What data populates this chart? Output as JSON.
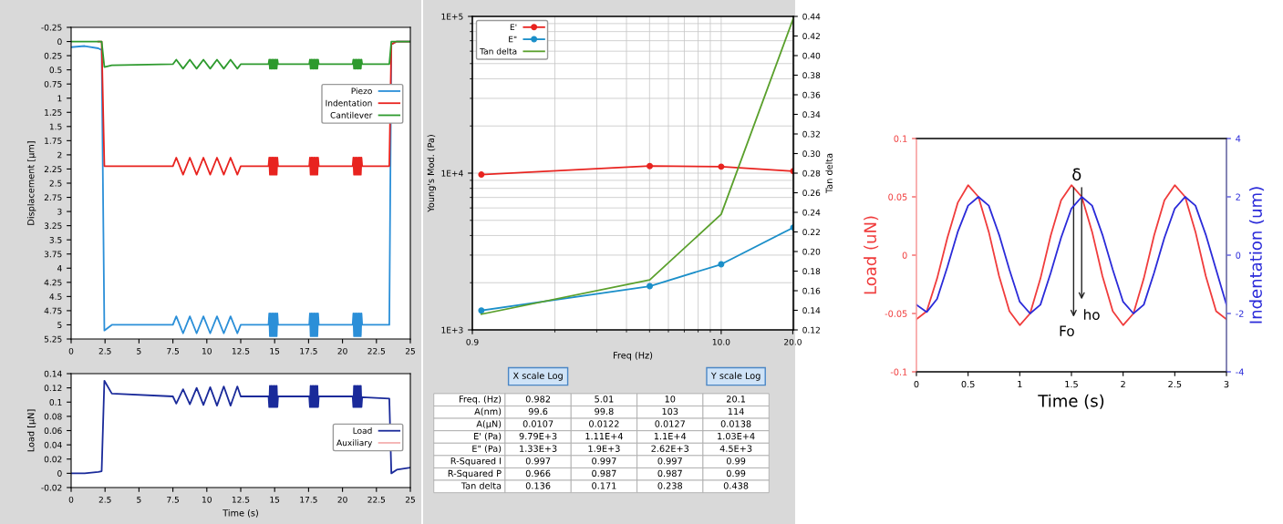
{
  "chart_data": [
    {
      "type": "line",
      "ylabel": "Displacement [μm]",
      "xlim": [
        0,
        25
      ],
      "ylim": [
        5.25,
        -0.25
      ],
      "xticks": [
        0,
        2.5,
        5,
        7.5,
        10,
        12.5,
        15,
        17.5,
        20,
        22.5,
        25
      ],
      "yticks": [
        -0.25,
        0,
        0.25,
        0.5,
        0.75,
        1,
        1.25,
        1.5,
        1.75,
        2,
        2.25,
        2.5,
        2.75,
        3,
        3.25,
        3.5,
        3.75,
        4,
        4.25,
        4.5,
        4.75,
        5,
        5.25
      ],
      "legend": "top right",
      "grid": false,
      "x": [
        0,
        1,
        2,
        2.25,
        2.45,
        3,
        7.5,
        7.75,
        8.25,
        8.75,
        9.25,
        9.75,
        10.25,
        10.75,
        11.25,
        11.75,
        12.25,
        12.5,
        14.55,
        14.6,
        14.65,
        14.7,
        14.75,
        14.8,
        14.85,
        14.9,
        14.95,
        15.0,
        15.05,
        15.1,
        15.15,
        15.2,
        15.25,
        17.55,
        17.6,
        17.65,
        17.7,
        17.75,
        17.8,
        17.85,
        17.9,
        17.95,
        18.0,
        18.05,
        18.1,
        18.15,
        18.2,
        18.25,
        20.75,
        20.8,
        20.85,
        20.9,
        20.95,
        21.0,
        21.05,
        21.1,
        21.15,
        21.2,
        21.25,
        21.3,
        21.35,
        21.4,
        21.45,
        23.45,
        23.6,
        24,
        25
      ],
      "series": [
        {
          "name": "Piezo",
          "color": "#2b8fd8",
          "values": [
            0.1,
            0.08,
            0.12,
            0.15,
            5.1,
            5.0,
            5.0,
            4.85,
            5.15,
            4.85,
            5.15,
            4.85,
            5.15,
            4.85,
            5.15,
            4.85,
            5.15,
            5.0,
            5.0,
            4.8,
            5.2,
            4.8,
            5.2,
            4.8,
            5.2,
            4.8,
            5.2,
            4.8,
            5.2,
            4.8,
            5.2,
            4.8,
            5.0,
            5.0,
            4.8,
            5.2,
            4.8,
            5.2,
            4.8,
            5.2,
            4.8,
            5.2,
            4.8,
            5.2,
            4.8,
            5.2,
            4.8,
            5.0,
            5.0,
            4.8,
            5.2,
            4.8,
            5.2,
            4.8,
            5.2,
            4.8,
            5.2,
            4.8,
            5.2,
            4.8,
            5.2,
            4.8,
            5.0,
            5.0,
            0.05,
            0.0,
            0.0
          ]
        },
        {
          "name": "Indentation",
          "color": "#e8231f",
          "values": [
            null,
            null,
            0,
            0,
            2.2,
            2.2,
            2.2,
            2.05,
            2.35,
            2.05,
            2.35,
            2.05,
            2.35,
            2.05,
            2.35,
            2.05,
            2.35,
            2.2,
            2.2,
            2.05,
            2.35,
            2.05,
            2.35,
            2.05,
            2.35,
            2.05,
            2.35,
            2.05,
            2.35,
            2.05,
            2.35,
            2.05,
            2.2,
            2.2,
            2.05,
            2.35,
            2.05,
            2.35,
            2.05,
            2.35,
            2.05,
            2.35,
            2.05,
            2.35,
            2.05,
            2.35,
            2.05,
            2.2,
            2.2,
            2.05,
            2.35,
            2.05,
            2.35,
            2.05,
            2.35,
            2.05,
            2.35,
            2.05,
            2.35,
            2.05,
            2.35,
            2.05,
            2.2,
            2.2,
            0.05,
            0.0,
            0.0
          ]
        },
        {
          "name": "Cantilever",
          "color": "#2e9a2e",
          "values": [
            0,
            0,
            0,
            0,
            0.45,
            0.42,
            0.4,
            0.32,
            0.48,
            0.32,
            0.48,
            0.32,
            0.48,
            0.32,
            0.48,
            0.32,
            0.48,
            0.4,
            0.4,
            0.32,
            0.48,
            0.32,
            0.48,
            0.32,
            0.48,
            0.32,
            0.48,
            0.32,
            0.48,
            0.32,
            0.48,
            0.32,
            0.4,
            0.4,
            0.32,
            0.48,
            0.32,
            0.48,
            0.32,
            0.48,
            0.32,
            0.48,
            0.32,
            0.48,
            0.32,
            0.48,
            0.32,
            0.4,
            0.4,
            0.32,
            0.48,
            0.32,
            0.48,
            0.32,
            0.48,
            0.32,
            0.48,
            0.32,
            0.48,
            0.32,
            0.48,
            0.32,
            0.4,
            0.4,
            0.0,
            0.0,
            0.0
          ]
        }
      ]
    },
    {
      "type": "line",
      "xlabel": "Time (s)",
      "ylabel": "Load [μN]",
      "xlim": [
        0,
        25
      ],
      "ylim": [
        -0.02,
        0.14
      ],
      "xticks": [
        0,
        2.5,
        5,
        7.5,
        10,
        12.5,
        15,
        17.5,
        20,
        22.5,
        25
      ],
      "yticks": [
        -0.02,
        0,
        0.02,
        0.04,
        0.06,
        0.08,
        0.1,
        0.12,
        0.14
      ],
      "legend": "right",
      "grid": false,
      "x": [
        0,
        1,
        2,
        2.25,
        2.45,
        3,
        7.5,
        7.75,
        8.25,
        8.75,
        9.25,
        9.75,
        10.25,
        10.75,
        11.25,
        11.75,
        12.25,
        12.5,
        14.55,
        14.6,
        14.65,
        14.7,
        14.75,
        14.8,
        14.85,
        14.9,
        14.95,
        15.0,
        15.05,
        15.1,
        15.15,
        15.2,
        15.25,
        17.55,
        17.6,
        17.65,
        17.7,
        17.75,
        17.8,
        17.85,
        17.9,
        17.95,
        18.0,
        18.05,
        18.1,
        18.15,
        18.2,
        18.25,
        20.75,
        20.8,
        20.85,
        20.9,
        20.95,
        21.0,
        21.05,
        21.1,
        21.15,
        21.2,
        21.25,
        21.3,
        21.35,
        21.4,
        21.45,
        23.45,
        23.6,
        24,
        25
      ],
      "series": [
        {
          "name": "Load",
          "color": "#1a2a9a",
          "values": [
            0.0,
            0.0,
            0.002,
            0.003,
            0.13,
            0.112,
            0.108,
            0.098,
            0.118,
            0.097,
            0.12,
            0.096,
            0.121,
            0.095,
            0.122,
            0.095,
            0.122,
            0.108,
            0.108,
            0.093,
            0.123,
            0.093,
            0.123,
            0.093,
            0.123,
            0.093,
            0.123,
            0.093,
            0.123,
            0.093,
            0.123,
            0.093,
            0.108,
            0.108,
            0.093,
            0.123,
            0.093,
            0.123,
            0.093,
            0.123,
            0.093,
            0.123,
            0.093,
            0.123,
            0.093,
            0.123,
            0.093,
            0.108,
            0.108,
            0.093,
            0.123,
            0.093,
            0.123,
            0.093,
            0.123,
            0.093,
            0.123,
            0.093,
            0.123,
            0.093,
            0.123,
            0.093,
            0.107,
            0.105,
            0.0,
            0.005,
            0.008
          ]
        },
        {
          "name": "Auxiliary",
          "color": "#f4b0b0",
          "values": [
            null,
            null,
            null,
            null,
            null,
            null,
            null,
            null,
            null,
            null,
            null,
            null,
            null,
            null,
            null,
            null,
            null,
            null,
            null,
            null,
            null,
            null,
            null,
            null,
            null,
            null,
            null,
            null,
            null,
            null,
            null,
            null,
            null,
            null,
            null,
            null,
            null,
            null,
            null,
            null,
            null,
            null,
            null,
            null,
            null,
            null,
            null,
            null,
            null,
            null,
            null,
            null,
            null,
            null,
            null,
            null,
            null,
            null,
            null,
            null,
            null,
            null,
            null,
            null,
            null,
            null,
            null
          ]
        }
      ]
    },
    {
      "type": "line",
      "xlabel": "Freq (Hz)",
      "ylabel": "Young's Mod. (Pa)",
      "y2label": "Tan delta",
      "log": "xy",
      "xlim": [
        0.9,
        20.1
      ],
      "ylim": [
        1000,
        100000
      ],
      "y2lim": [
        0.12,
        0.44
      ],
      "xticks": [
        {
          "value": 0.9,
          "label": "0.9"
        },
        {
          "value": 10,
          "label": "10.0"
        },
        {
          "value": 20,
          "label": "20.0"
        }
      ],
      "yticks": [
        {
          "value": 1000,
          "label": "1E+3"
        },
        {
          "value": 10000,
          "label": "1E+4"
        },
        {
          "value": 100000,
          "label": "1E+5"
        }
      ],
      "y2ticks": [
        0.12,
        0.14,
        0.16,
        0.18,
        {
          "value": 0.2,
          "label": "0.20"
        },
        0.22,
        0.24,
        0.26,
        0.28,
        {
          "value": 0.3,
          "label": "0.30"
        },
        0.32,
        0.34,
        0.36,
        0.38,
        {
          "value": 0.4,
          "label": "0.40"
        },
        0.42,
        0.44
      ],
      "grid": true,
      "legend": "top left",
      "x": [
        0.982,
        5.01,
        10,
        20.1
      ],
      "series": [
        {
          "name": "E'",
          "color": "#e8231f",
          "marker": "circle",
          "values": [
            9790,
            11100,
            11000,
            10300
          ]
        },
        {
          "name": "E\"",
          "color": "#1b8fc9",
          "marker": "circle",
          "values": [
            1330,
            1900,
            2620,
            4500
          ]
        },
        {
          "name": "Tan delta",
          "color": "#5aa02c",
          "axis": "y2",
          "values": [
            0.136,
            0.171,
            0.238,
            0.438
          ]
        }
      ]
    },
    {
      "type": "other",
      "annotations": [
        "X scale Log",
        "Y scale Log"
      ],
      "y_categories": [
        "Freq. (Hz)",
        "A(nm)",
        "A(μN)",
        "E' (Pa)",
        "E\" (Pa)",
        "R-Squared I",
        "R-Squared P",
        "Tan delta"
      ],
      "cell_labels": [
        [
          "0.982",
          "5.01",
          "10",
          "20.1"
        ],
        [
          "99.6",
          "99.8",
          "103",
          "114"
        ],
        [
          "0.0107",
          "0.0122",
          "0.0127",
          "0.0138"
        ],
        [
          "9.79E+3",
          "1.11E+4",
          "1.1E+4",
          "1.03E+4"
        ],
        [
          "1.33E+3",
          "1.9E+3",
          "2.62E+3",
          "4.5E+3"
        ],
        [
          "0.997",
          "0.997",
          "0.997",
          "0.99"
        ],
        [
          "0.966",
          "0.987",
          "0.987",
          "0.99"
        ],
        [
          "0.136",
          "0.171",
          "0.238",
          "0.438"
        ]
      ]
    },
    {
      "type": "line",
      "xlabel": "Time (s)",
      "ylabel": "Load (uN)",
      "y2label": "Indentation (um)",
      "xlim": [
        0,
        3
      ],
      "ylim": [
        -0.1,
        0.1
      ],
      "y2lim": [
        -4,
        4
      ],
      "xticks": [
        0,
        0.5,
        1,
        1.5,
        2,
        2.5,
        3
      ],
      "yticks": [
        -0.1,
        -0.05,
        0,
        0.05,
        0.1
      ],
      "y2ticks": [
        -4,
        -2,
        0,
        2,
        4
      ],
      "grid": false,
      "x": [
        0,
        0.1,
        0.2,
        0.3,
        0.4,
        0.5,
        0.6,
        0.7,
        0.8,
        0.9,
        1.0,
        1.1,
        1.2,
        1.3,
        1.4,
        1.5,
        1.6,
        1.7,
        1.8,
        1.9,
        2.0,
        2.1,
        2.2,
        2.3,
        2.4,
        2.5,
        2.6,
        2.7,
        2.8,
        2.9,
        3.0
      ],
      "series": [
        {
          "color": "#f03c3c",
          "values": [
            -0.055,
            -0.048,
            -0.02,
            0.015,
            0.045,
            0.06,
            0.05,
            0.02,
            -0.018,
            -0.048,
            -0.06,
            -0.05,
            -0.02,
            0.017,
            0.047,
            0.06,
            0.05,
            0.02,
            -0.018,
            -0.048,
            -0.06,
            -0.05,
            -0.02,
            0.017,
            0.047,
            0.06,
            0.05,
            0.02,
            -0.018,
            -0.048,
            -0.055
          ]
        },
        {
          "color": "#2b2bd9",
          "axis": "y2",
          "values": [
            -1.7,
            -1.95,
            -1.5,
            -0.4,
            0.8,
            1.7,
            2.0,
            1.7,
            0.7,
            -0.5,
            -1.6,
            -2.0,
            -1.7,
            -0.6,
            0.6,
            1.6,
            2.0,
            1.7,
            0.7,
            -0.5,
            -1.6,
            -2.0,
            -1.7,
            -0.6,
            0.6,
            1.6,
            2.0,
            1.7,
            0.7,
            -0.5,
            -1.7
          ]
        }
      ],
      "annotations": [
        "δ",
        "Fo",
        "ho"
      ]
    }
  ]
}
